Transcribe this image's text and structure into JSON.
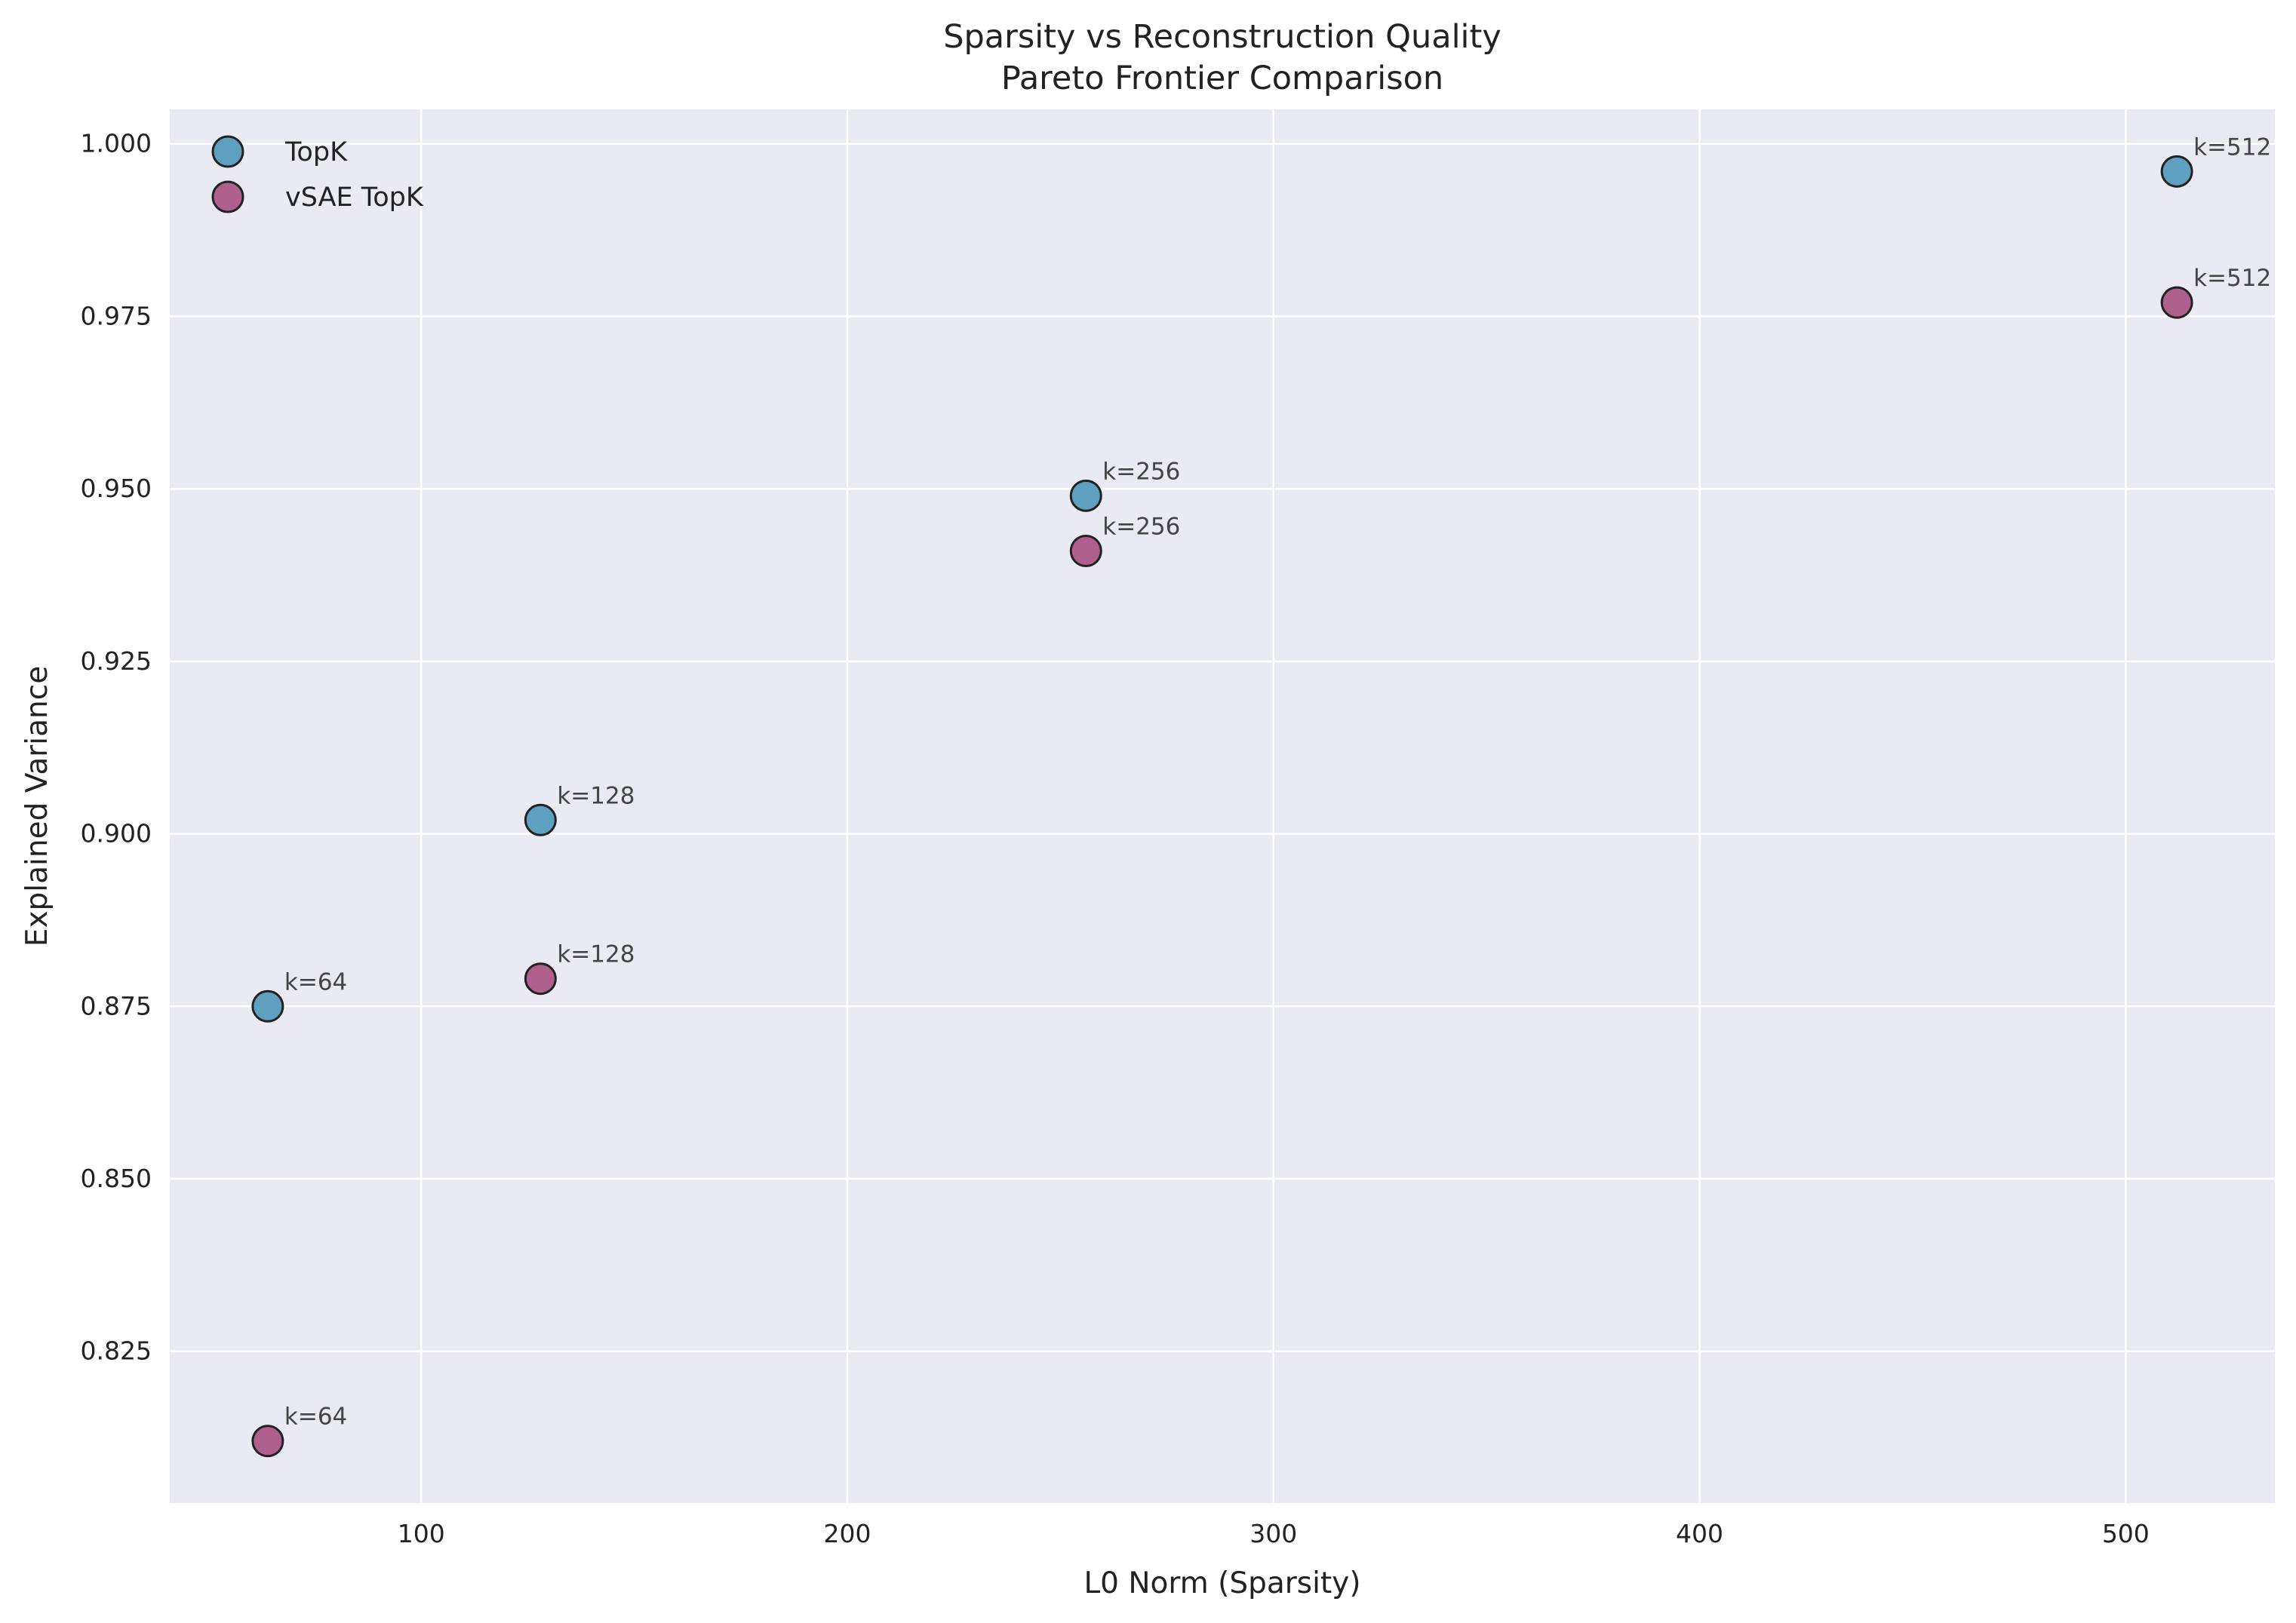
{
  "chart_data": {
    "type": "scatter",
    "title": "Sparsity vs Reconstruction Quality",
    "subtitle": "Pareto Frontier Comparison",
    "xlabel": "L0 Norm (Sparsity)",
    "ylabel": "Explained Variance",
    "xlim": [
      41,
      535
    ],
    "ylim": [
      0.803,
      1.005
    ],
    "xticks": [
      100,
      200,
      300,
      400,
      500
    ],
    "xtick_labels": [
      "100",
      "200",
      "300",
      "400",
      "500"
    ],
    "yticks": [
      0.825,
      0.85,
      0.875,
      0.9,
      0.925,
      0.95,
      0.975,
      1.0
    ],
    "ytick_labels": [
      "0.825",
      "0.850",
      "0.875",
      "0.900",
      "0.925",
      "0.950",
      "0.975",
      "1.000"
    ],
    "grid": true,
    "legend_position": "top-left",
    "series": [
      {
        "name": "TopK",
        "color": "#5f9fbf",
        "x": [
          64,
          128,
          256,
          512
        ],
        "y": [
          0.875,
          0.902,
          0.949,
          0.996
        ],
        "labels": [
          "k=64",
          "k=128",
          "k=256",
          "k=512"
        ]
      },
      {
        "name": "vSAE TopK",
        "color": "#b0608c",
        "x": [
          64,
          128,
          256,
          512
        ],
        "y": [
          0.812,
          0.879,
          0.941,
          0.977
        ],
        "labels": [
          "k=64",
          "k=128",
          "k=256",
          "k=512"
        ]
      }
    ]
  }
}
